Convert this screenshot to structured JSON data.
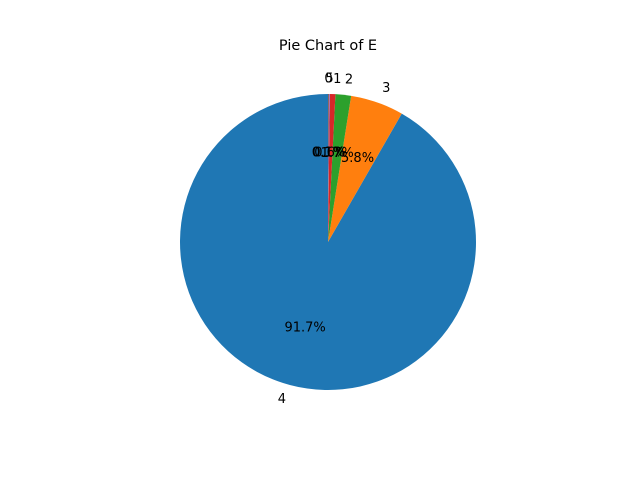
{
  "chart_data": {
    "type": "pie",
    "title": "Pie Chart of E",
    "labels": [
      "4",
      "3",
      "2",
      "1",
      "5",
      "0"
    ],
    "values": [
      91.7,
      5.8,
      1.7,
      0.6,
      0.1,
      0.1
    ],
    "percent_labels": [
      "91.7%",
      "5.8%",
      "1.7%",
      "0.6%",
      "0.1%",
      "0.1%"
    ],
    "colors": [
      "#1f77b4",
      "#ff7f0e",
      "#2ca02c",
      "#d62728",
      "#9467bd",
      "#8c564b"
    ],
    "start_angle_deg": 90,
    "direction": "counterclockwise"
  }
}
